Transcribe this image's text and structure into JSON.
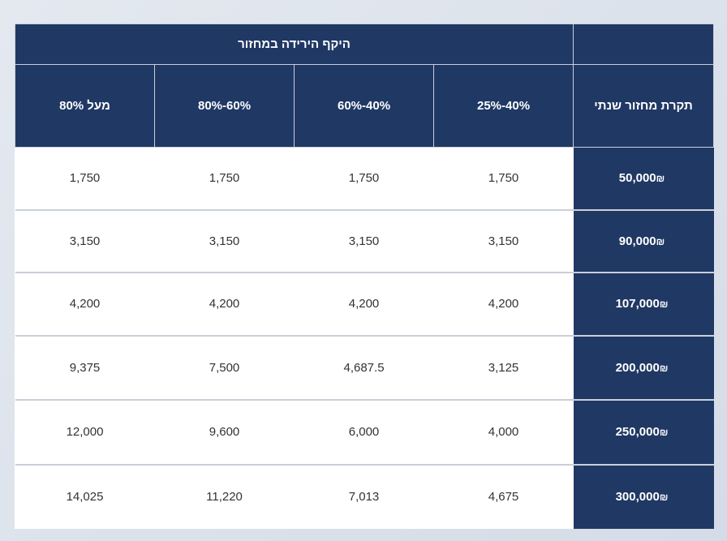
{
  "table": {
    "group_header": "היקף הירידה במחזור",
    "corner_header": "",
    "first_col_header": "תקרת מחזור שנתי",
    "column_headers": [
      "40%-25%",
      "40%-60%",
      "60%-80%",
      "מעל 80%"
    ],
    "currency_symbol": "₪",
    "rows": [
      {
        "label": "50,000",
        "values": [
          "1,750",
          "1,750",
          "1,750",
          "1,750"
        ]
      },
      {
        "label": "90,000",
        "values": [
          "3,150",
          "3,150",
          "3,150",
          "3,150"
        ]
      },
      {
        "label": "107,000",
        "values": [
          "4,200",
          "4,200",
          "4,200",
          "4,200"
        ]
      },
      {
        "label": "200,000",
        "values": [
          "3,125",
          "4,687.5",
          "7,500",
          "9,375"
        ]
      },
      {
        "label": "250,000",
        "values": [
          "4,000",
          "6,000",
          "9,600",
          "12,000"
        ]
      },
      {
        "label": "300,000",
        "values": [
          "4,675",
          "7,013",
          "11,220",
          "14,025"
        ]
      }
    ]
  }
}
